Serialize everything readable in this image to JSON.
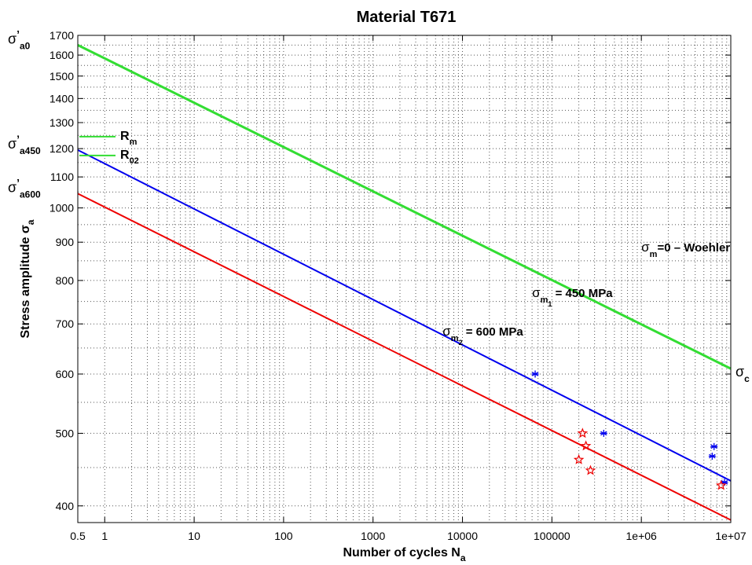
{
  "chart_data": {
    "type": "line",
    "title": "Material T671",
    "xlabel": {
      "main": "Number of cycles N",
      "sub": "a"
    },
    "ylabel": {
      "main": "Stress amplitude σ",
      "sub": "a"
    },
    "xscale": "log",
    "yscale": "log",
    "xlim": [
      0.5,
      10000000
    ],
    "ylim": [
      380,
      1700
    ],
    "grid": true,
    "x_tick_labels": [
      "0.5",
      "1",
      "10",
      "100",
      "1000",
      "10000",
      "100000",
      "1e+06",
      "1e+07"
    ],
    "y_tick_labels": [
      "400",
      "500",
      "600",
      "700",
      "800",
      "900",
      "1000",
      "1100",
      "1200",
      "1300",
      "1400",
      "1500",
      "1600",
      "1700"
    ],
    "x_ticks": [
      0.5,
      1,
      10,
      100,
      1000,
      10000,
      100000,
      1000000,
      10000000
    ],
    "y_ticks": [
      400,
      500,
      600,
      700,
      800,
      900,
      1000,
      1100,
      1200,
      1300,
      1400,
      1500,
      1600,
      1700
    ],
    "series": [
      {
        "id": "woehler",
        "color": "#33dd33",
        "points": [
          [
            0.5,
            1650
          ],
          [
            10000000,
            610
          ]
        ],
        "label": {
          "greek": "σ",
          "sub": "m",
          "subsub": "",
          "text": "=0 – Woehler"
        },
        "label_at": [
          1000000,
          875
        ]
      },
      {
        "id": "sm1",
        "color": "#0000ee",
        "points": [
          [
            0.5,
            1195
          ],
          [
            10000000,
            432
          ]
        ],
        "label": {
          "greek": "σ",
          "sub": "m",
          "subsub": "1",
          "text": " = 450 MPa"
        },
        "label_at": [
          60000,
          760
        ]
      },
      {
        "id": "sm2",
        "color": "#ee0000",
        "points": [
          [
            0.5,
            1045
          ],
          [
            10000000,
            383
          ]
        ],
        "label": {
          "greek": "σ",
          "sub": "m",
          "subsub": "2",
          "text": " = 600 MPa"
        },
        "label_at": [
          6000,
          675
        ]
      }
    ],
    "markers": [
      {
        "series": "sm1",
        "symbol": "asterisk",
        "color": "#0000ee",
        "points": [
          [
            65000,
            600
          ],
          [
            380000,
            500
          ],
          [
            6500000,
            480
          ],
          [
            6200000,
            466
          ],
          [
            8500000,
            430
          ]
        ]
      },
      {
        "series": "sm2",
        "symbol": "star",
        "color": "#ee0000",
        "points": [
          [
            220000,
            500
          ],
          [
            240000,
            481
          ],
          [
            200000,
            461
          ],
          [
            270000,
            446
          ],
          [
            7800000,
            426
          ]
        ]
      }
    ],
    "legend": {
      "placement": "left",
      "entries": [
        {
          "color": "#33dd33",
          "label": "R",
          "sub": "m",
          "y": 1245
        },
        {
          "color": "#33dd33",
          "label": "R",
          "sub": "02",
          "y": 1175
        }
      ]
    },
    "side_annotations": [
      {
        "greek": "σ",
        "sup": "’",
        "sub": "a0",
        "side": "left",
        "y": 1650
      },
      {
        "greek": "σ",
        "sup": "’",
        "sub": "a450",
        "side": "left",
        "y": 1195
      },
      {
        "greek": "σ",
        "sup": "’",
        "sub": "a600",
        "side": "left",
        "y": 1045
      },
      {
        "greek": "σ",
        "sup": "",
        "sub": "c",
        "side": "right",
        "y": 610
      }
    ]
  }
}
